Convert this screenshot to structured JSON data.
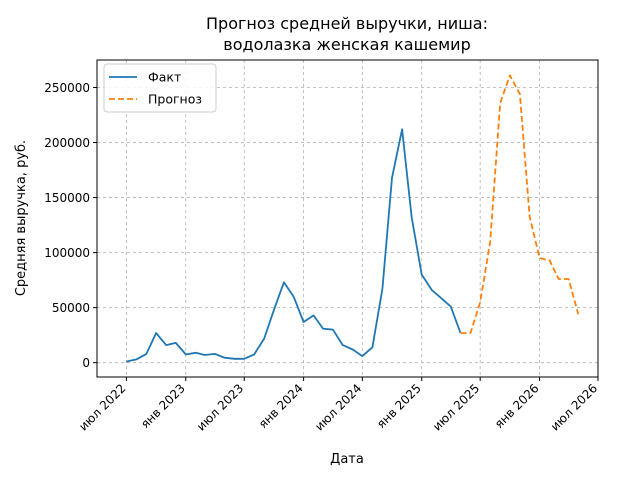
{
  "chart_data": {
    "type": "line",
    "title_line1": "Прогноз средней выручки, ниша:",
    "title_line2": "водолазка женская кашемир",
    "xlabel": "Дата",
    "ylabel": "Средняя выручка, руб.",
    "grid": true,
    "legend_position": "top-left",
    "x_ticks": [
      {
        "date": "2022-07-01",
        "label": "июл 2022"
      },
      {
        "date": "2023-01-01",
        "label": "янв 2023"
      },
      {
        "date": "2023-07-01",
        "label": "июл 2023"
      },
      {
        "date": "2024-01-01",
        "label": "янв 2024"
      },
      {
        "date": "2024-07-01",
        "label": "июл 2024"
      },
      {
        "date": "2025-01-01",
        "label": "янв 2025"
      },
      {
        "date": "2025-07-01",
        "label": "июл 2025"
      },
      {
        "date": "2026-01-01",
        "label": "янв 2026"
      },
      {
        "date": "2026-07-01",
        "label": "июл 2026"
      }
    ],
    "y_ticks": [
      0,
      50000,
      100000,
      150000,
      200000,
      250000
    ],
    "xlim": [
      "2022-04-01",
      "2026-07-01"
    ],
    "ylim": [
      -13000,
      275000
    ],
    "series": [
      {
        "name": "Факт",
        "color": "#1f77b4",
        "style": "solid",
        "points": [
          [
            "2022-07-01",
            1000
          ],
          [
            "2022-08-01",
            3000
          ],
          [
            "2022-09-01",
            8000
          ],
          [
            "2022-10-01",
            27000
          ],
          [
            "2022-11-01",
            16000
          ],
          [
            "2022-12-01",
            18000
          ],
          [
            "2023-01-01",
            7500
          ],
          [
            "2023-02-01",
            9000
          ],
          [
            "2023-03-01",
            7000
          ],
          [
            "2023-04-01",
            8000
          ],
          [
            "2023-05-01",
            4500
          ],
          [
            "2023-06-01",
            3500
          ],
          [
            "2023-07-01",
            3500
          ],
          [
            "2023-08-01",
            7500
          ],
          [
            "2023-09-01",
            22000
          ],
          [
            "2023-10-01",
            48000
          ],
          [
            "2023-11-01",
            73000
          ],
          [
            "2023-12-01",
            60000
          ],
          [
            "2024-01-01",
            37000
          ],
          [
            "2024-02-01",
            43000
          ],
          [
            "2024-03-01",
            31000
          ],
          [
            "2024-04-01",
            30000
          ],
          [
            "2024-05-01",
            16000
          ],
          [
            "2024-06-01",
            12000
          ],
          [
            "2024-07-01",
            6000
          ],
          [
            "2024-08-01",
            14000
          ],
          [
            "2024-09-01",
            67000
          ],
          [
            "2024-10-01",
            168000
          ],
          [
            "2024-11-01",
            212000
          ],
          [
            "2024-12-01",
            132000
          ],
          [
            "2025-01-01",
            80000
          ],
          [
            "2025-02-01",
            66000
          ],
          [
            "2025-03-01",
            59000
          ],
          [
            "2025-04-01",
            51000
          ],
          [
            "2025-05-01",
            27000
          ]
        ]
      },
      {
        "name": "Прогноз",
        "color": "#ff7f0e",
        "style": "dashed",
        "points": [
          [
            "2025-05-01",
            27000
          ],
          [
            "2025-06-01",
            27000
          ],
          [
            "2025-07-01",
            55000
          ],
          [
            "2025-08-01",
            110000
          ],
          [
            "2025-09-01",
            236000
          ],
          [
            "2025-10-01",
            261000
          ],
          [
            "2025-11-01",
            244000
          ],
          [
            "2025-12-01",
            133000
          ],
          [
            "2026-01-01",
            95000
          ],
          [
            "2026-02-01",
            93000
          ],
          [
            "2026-03-01",
            76000
          ],
          [
            "2026-04-01",
            76000
          ],
          [
            "2026-05-01",
            44000
          ]
        ]
      }
    ]
  }
}
